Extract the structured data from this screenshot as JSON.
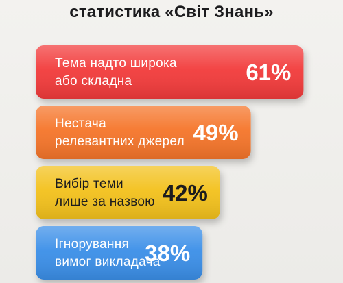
{
  "title": "статистика «Світ Знань»",
  "chart_data": {
    "type": "bar",
    "orientation": "horizontal",
    "title": "статистика «Світ Знань»",
    "categories": [
      [
        "Тема надто широка",
        "або складна"
      ],
      [
        "Нестача",
        "релевантних джерел"
      ],
      [
        "Вибір теми",
        "лише за назвою"
      ],
      [
        "Ігнорування",
        "вимог викладача"
      ]
    ],
    "values": [
      61,
      49,
      42,
      38
    ],
    "value_labels": [
      "61%",
      "49%",
      "42%",
      "38%"
    ],
    "unit": "%",
    "colors": [
      "#f23b3b",
      "#f5742a",
      "#f3c11f",
      "#3a8fe8"
    ],
    "label_colors": [
      "#ffffff",
      "#ffffff",
      "#1c1c1e",
      "#ffffff"
    ],
    "grid": false,
    "legend": "none"
  }
}
